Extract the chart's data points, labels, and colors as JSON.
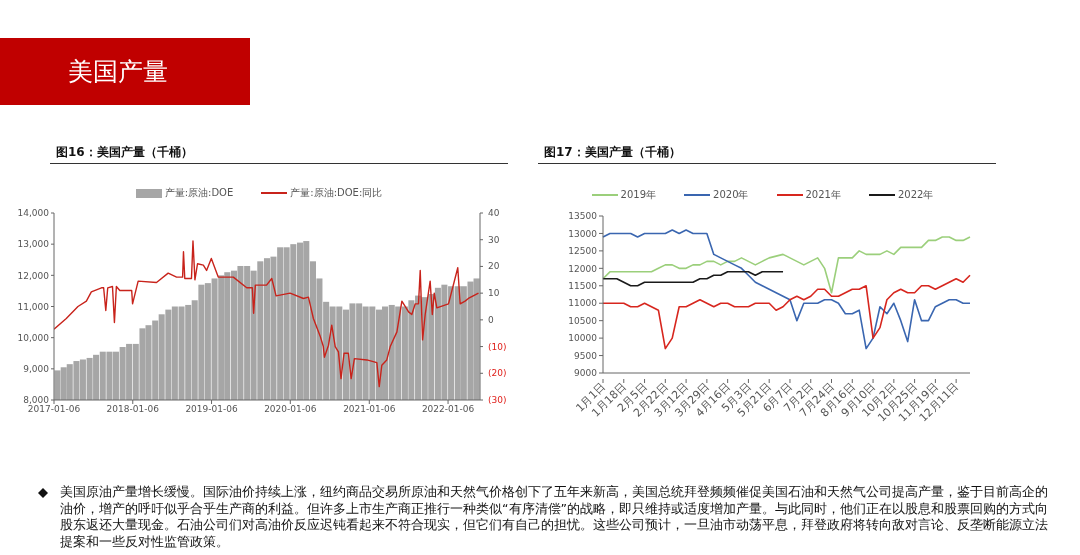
{
  "chart_data": [
    {
      "type": "other",
      "title": "美国产量"
    },
    {
      "type": "bar",
      "title": "图16：美国产量（千桶）",
      "legend": "top",
      "marker": "none",
      "series": [
        {
          "name": "产量:原油:DOE",
          "type": "bar",
          "color": "#a6a6a6",
          "x": [
            "2017-01-22",
            "2017-02-20",
            "2017-03-20",
            "2017-04-20",
            "2017-05-20",
            "2017-06-20",
            "2017-07-20",
            "2017-08-20",
            "2017-09-20",
            "2017-10-20",
            "2017-11-20",
            "2017-12-20",
            "2018-01-20",
            "2018-02-20",
            "2018-03-20",
            "2018-04-20",
            "2018-05-20",
            "2018-06-20",
            "2018-07-20",
            "2018-08-20",
            "2018-09-20",
            "2018-10-20",
            "2018-11-20",
            "2018-12-20",
            "2019-01-20",
            "2019-02-20",
            "2019-03-20",
            "2019-04-20",
            "2019-05-20",
            "2019-06-20",
            "2019-07-20",
            "2019-08-20",
            "2019-09-20",
            "2019-10-20",
            "2019-11-20",
            "2019-12-20",
            "2020-01-20",
            "2020-02-20",
            "2020-03-20",
            "2020-04-20",
            "2020-05-20",
            "2020-06-20",
            "2020-07-20",
            "2020-08-20",
            "2020-09-20",
            "2020-10-20",
            "2020-11-20",
            "2020-12-20",
            "2021-01-20",
            "2021-02-20",
            "2021-03-20",
            "2021-04-20",
            "2021-05-20",
            "2021-06-20",
            "2021-07-20",
            "2021-08-20",
            "2021-09-20",
            "2021-10-20",
            "2021-11-20",
            "2021-12-20",
            "2022-01-20",
            "2022-02-20",
            "2022-03-20",
            "2022-04-20",
            "2022-05-18"
          ],
          "values": [
            8950,
            9050,
            9150,
            9250,
            9300,
            9350,
            9450,
            9550,
            9550,
            9550,
            9700,
            9800,
            9800,
            10300,
            10400,
            10550,
            10750,
            10900,
            11000,
            11000,
            11050,
            11200,
            11700,
            11750,
            11900,
            12000,
            12100,
            12150,
            12300,
            12300,
            12150,
            12450,
            12550,
            12600,
            12900,
            12900,
            13000,
            13050,
            13100,
            12450,
            11900,
            11150,
            11000,
            11000,
            10900,
            11100,
            11100,
            11000,
            11000,
            10900,
            11000,
            11050,
            11000,
            11000,
            11200,
            11350,
            11300,
            11400,
            11600,
            11700,
            11650,
            11650,
            11650,
            11800,
            11900
          ]
        },
        {
          "name": "产量:原油:DOE:同比",
          "type": "line",
          "axis": "y2",
          "color": "#c8231b",
          "x": [
            "2017-01-06",
            "2017-03-04",
            "2017-04-27",
            "2017-06-05",
            "2017-06-28",
            "2017-08-14",
            "2017-08-24",
            "2017-09-03",
            "2017-09-12",
            "2017-10-04",
            "2017-10-13",
            "2017-10-22",
            "2017-11-07",
            "2018-01-01",
            "2018-01-05",
            "2018-01-31",
            "2018-04-26",
            "2018-06-19",
            "2018-07-28",
            "2018-08-25",
            "2018-08-29",
            "2018-09-04",
            "2018-10-05",
            "2018-10-12",
            "2018-10-21",
            "2018-11-02",
            "2018-11-29",
            "2018-12-14",
            "2019-01-05",
            "2019-02-06",
            "2019-04-17",
            "2019-06-18",
            "2019-07-14",
            "2019-07-20",
            "2019-07-28",
            "2019-09-18",
            "2019-10-12",
            "2019-11-01",
            "2020-01-05",
            "2020-03-07",
            "2020-03-30",
            "2020-04-22",
            "2020-05-23",
            "2020-06-07",
            "2020-06-12",
            "2020-07-01",
            "2020-07-16",
            "2020-08-01",
            "2020-08-16",
            "2020-08-28",
            "2020-09-11",
            "2020-10-01",
            "2020-10-14",
            "2020-10-29",
            "2020-12-26",
            "2021-02-10",
            "2021-02-21",
            "2021-03-05",
            "2021-03-28",
            "2021-04-13",
            "2021-05-14",
            "2021-06-06",
            "2021-07-07",
            "2021-07-22",
            "2021-08-07",
            "2021-08-22",
            "2021-08-30",
            "2021-09-10",
            "2021-09-22",
            "2021-10-15",
            "2021-10-25",
            "2021-11-03",
            "2021-11-15",
            "2022-01-08",
            "2022-02-20",
            "2022-03-03",
            "2022-03-26",
            "2022-04-10",
            "2022-05-27"
          ],
          "values": [
            -3.5,
            0.5,
            5,
            7,
            10.5,
            12,
            12,
            3.5,
            12,
            12.5,
            -1,
            12.5,
            11,
            11,
            6,
            14.5,
            14,
            17.5,
            16,
            16,
            25.5,
            15.5,
            15.5,
            29.5,
            15,
            21,
            20.5,
            18.5,
            23,
            16,
            16,
            12,
            12,
            2.5,
            13,
            13,
            15.5,
            9,
            10,
            8,
            8.5,
            0.5,
            -6,
            -10,
            -14,
            -9.5,
            -2,
            -10,
            -12,
            -22,
            -12.5,
            -12.5,
            -22,
            -14.5,
            -15,
            -16,
            -25,
            -17,
            -15,
            -10,
            -4.5,
            7,
            3,
            2,
            6,
            6,
            18.5,
            -7.5,
            2,
            14.5,
            2,
            10,
            4.5,
            6,
            19.5,
            6,
            7,
            8,
            10
          ]
        }
      ],
      "xlim": [
        "2017-01-06",
        "2022-06-03"
      ],
      "xticks": [
        "2017-01-06",
        "2018-01-06",
        "2019-01-06",
        "2020-01-06",
        "2021-01-06",
        "2022-01-06"
      ],
      "ylim": [
        8000,
        14000
      ],
      "yticks": [
        {
          "value": 8000,
          "label": "8,000"
        },
        {
          "value": 9000,
          "label": "9,000"
        },
        {
          "value": 10000,
          "label": "10,000"
        },
        {
          "value": 11000,
          "label": "11,000"
        },
        {
          "value": 12000,
          "label": "12,000"
        },
        {
          "value": 13000,
          "label": "13,000"
        },
        {
          "value": 14000,
          "label": "14,000"
        }
      ],
      "y2lim": [
        -30,
        40
      ],
      "y2ticks": [
        {
          "value": -30,
          "label": "(30)"
        },
        {
          "value": -20,
          "label": "(20)"
        },
        {
          "value": -10,
          "label": "(10)"
        },
        0,
        10,
        20,
        30,
        40
      ]
    },
    {
      "type": "line",
      "title": "图17：美国产量（千桶）",
      "legend": "top",
      "marker": "none",
      "categories": [
        "1月1日",
        null,
        null,
        "1月18日",
        null,
        null,
        "2月5日",
        null,
        null,
        "2月22日",
        null,
        null,
        "3月12日",
        null,
        null,
        "3月29日",
        null,
        null,
        "4月16日",
        null,
        null,
        "5月3日",
        null,
        null,
        "5月21日",
        null,
        null,
        "6月7日",
        null,
        null,
        "7月2日",
        null,
        null,
        "7月24日",
        null,
        null,
        "8月16日",
        null,
        null,
        "9月10日",
        null,
        null,
        "10月2日",
        null,
        null,
        "10月25日",
        null,
        null,
        "11月19日",
        null,
        null,
        "12月11日",
        null,
        null
      ],
      "series": [
        {
          "name": "2019年",
          "color": "#9bcf7b",
          "values": [
            11700,
            11900,
            11900,
            11900,
            11900,
            11900,
            11900,
            11900,
            12000,
            12100,
            12100,
            12000,
            12000,
            12100,
            12100,
            12200,
            12200,
            12100,
            12200,
            12200,
            12300,
            12200,
            12100,
            12200,
            12300,
            12350,
            12400,
            12300,
            12200,
            12100,
            12200,
            12300,
            12000,
            11300,
            12300,
            12300,
            12300,
            12500,
            12400,
            12400,
            12400,
            12500,
            12400,
            12600,
            12600,
            12600,
            12600,
            12800,
            12800,
            12900,
            12900,
            12800,
            12800,
            12900
          ]
        },
        {
          "name": "2020年",
          "color": "#3a66b0",
          "values": [
            12900,
            13000,
            13000,
            13000,
            13000,
            12900,
            13000,
            13000,
            13000,
            13000,
            13100,
            13000,
            13100,
            13000,
            13000,
            13000,
            12400,
            12300,
            12200,
            12100,
            12000,
            11800,
            11600,
            11500,
            11400,
            11300,
            11200,
            11100,
            10500,
            11000,
            11000,
            11000,
            11100,
            11100,
            11000,
            10700,
            10700,
            10800,
            9700,
            10000,
            10900,
            10700,
            11000,
            10500,
            9900,
            11100,
            10500,
            10500,
            10900,
            11000,
            11100,
            11100,
            11000,
            11000
          ]
        },
        {
          "name": "2021年",
          "color": "#d7261e",
          "values": [
            11000,
            11000,
            11000,
            11000,
            10900,
            10900,
            11000,
            10900,
            10800,
            9700,
            10000,
            10900,
            10900,
            11000,
            11100,
            11000,
            10900,
            11000,
            11000,
            10900,
            10900,
            10900,
            11000,
            11000,
            11000,
            10800,
            10900,
            11100,
            11200,
            11100,
            11200,
            11400,
            11400,
            11200,
            11200,
            11300,
            11400,
            11400,
            11500,
            10000,
            10300,
            11100,
            11300,
            11400,
            11300,
            11300,
            11500,
            11500,
            11400,
            11500,
            11600,
            11700,
            11600,
            11800
          ]
        },
        {
          "name": "2022年",
          "color": "#1a1a1a",
          "values": [
            11700,
            11700,
            11700,
            11600,
            11500,
            11500,
            11600,
            11600,
            11600,
            11600,
            11600,
            11600,
            11600,
            11600,
            11700,
            11700,
            11800,
            11800,
            11900,
            11900,
            11900,
            11900,
            11800,
            11900,
            11900,
            11900,
            11900,
            null,
            null,
            null,
            null,
            null,
            null,
            null,
            null,
            null,
            null,
            null,
            null,
            null,
            null,
            null,
            null,
            null,
            null,
            null,
            null,
            null,
            null,
            null,
            null,
            null,
            null,
            null
          ]
        }
      ],
      "ylim": [
        9000,
        13500
      ],
      "yticks": [
        9000,
        9500,
        10000,
        10500,
        11000,
        11500,
        12000,
        12500,
        13000,
        13500
      ]
    },
    {
      "type": "other",
      "annotations": [
        "美国原油产量增长缓慢。国际油价持续上涨，纽约商品交易所原油和天然气价格创下了五年来新高，美国总统拜登频频催促美国石油和天然气公司提高产量，鉴于目前高企的油价，增产的呼吁似乎合乎生产商的利益。但许多上市生产商正推行一种类似“有序清偿”的战略，即只维持或适度增加产量。与此同时，他们正在以股息和股票回购的方式向股东返还大量现金。石油公司们对高油价反应迟钝看起来不符合现实，但它们有自己的担忧。这些公司预计，一旦油市动荡平息，拜登政府将转向敌对言论、反垄断能源立法提案和一些反对性监管政策。"
      ]
    }
  ]
}
